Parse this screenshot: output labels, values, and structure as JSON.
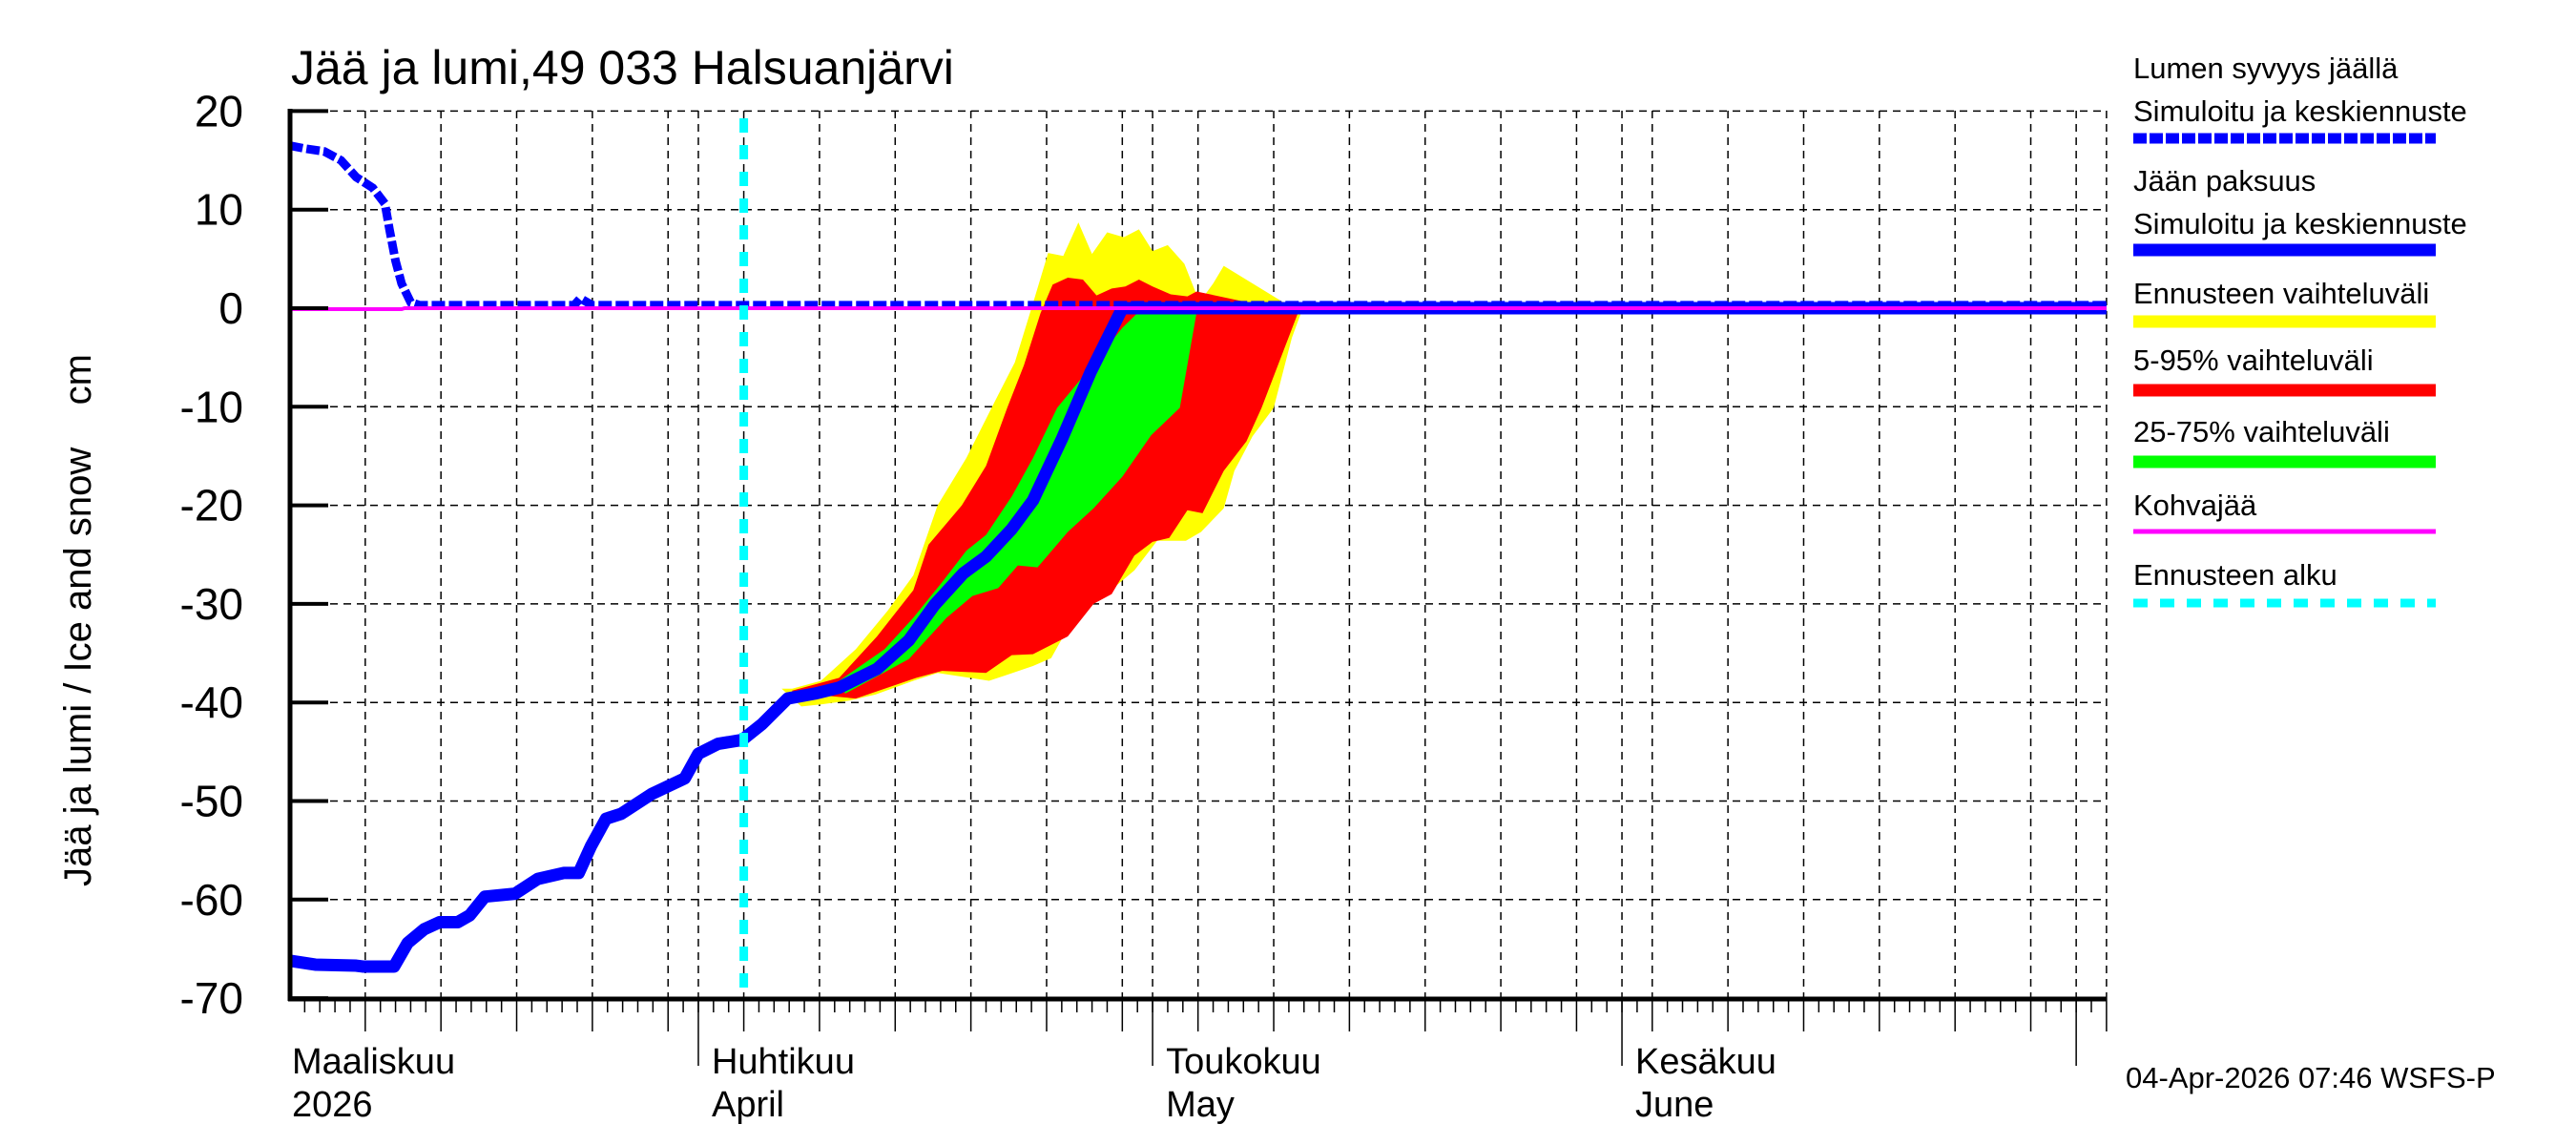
{
  "title": "Jää ja lumi,49 033 Halsuanjärvi",
  "timestamp": "04-Apr-2026 07:46 WSFS-P",
  "colors": {
    "snow": "#0000ff",
    "ice": "#0000ff",
    "range_full": "#ffff00",
    "range_5_95": "#ff0000",
    "range_25_75": "#00ff00",
    "slush_ice": "#ff00ff",
    "forecast_start": "#00ffff",
    "grid": "#000000"
  },
  "legend": [
    {
      "label1": "Lumen syvyys jäällä",
      "label2": "Simuloitu ja keskiennuste",
      "key": "snow",
      "style": "dashed-thick"
    },
    {
      "label1": "Jään paksuus",
      "label2": "Simuloitu ja keskiennuste",
      "key": "ice",
      "style": "solid-thick"
    },
    {
      "label1": "Ennusteen vaihteluväli",
      "label2": "",
      "key": "range_full",
      "style": "solid-thick"
    },
    {
      "label1": "5-95% vaihteluväli",
      "label2": "",
      "key": "range_5_95",
      "style": "solid-thick"
    },
    {
      "label1": "25-75% vaihteluväli",
      "label2": "",
      "key": "range_25_75",
      "style": "solid-thick"
    },
    {
      "label1": "Kohvajää",
      "label2": "",
      "key": "slush_ice",
      "style": "solid-thin"
    },
    {
      "label1": "Ennusteen alku",
      "label2": "",
      "key": "forecast_start",
      "style": "dotted-thick"
    }
  ],
  "chart_data": {
    "type": "area",
    "title": "Jää ja lumi,49 033 Halsuanjärvi",
    "xlabel": "",
    "ylabel": "Jää ja lumi / Ice and snow    cm",
    "ylim": [
      -70,
      20
    ],
    "yticks": [
      20,
      10,
      0,
      -10,
      -20,
      -30,
      -40,
      -50,
      -60,
      -70
    ],
    "x_unit": "days since 2026-03-01",
    "xlim": [
      4,
      124
    ],
    "grid": true,
    "grid_x_days": [
      9,
      14,
      19,
      24,
      29,
      34,
      39,
      44,
      49,
      54,
      59,
      64,
      69,
      74,
      79,
      84,
      89,
      94,
      99,
      104,
      109,
      114,
      119,
      124
    ],
    "month_ticks": [
      {
        "day": 4,
        "label1": "Maaliskuu",
        "label2": "2026",
        "label_only": true
      },
      {
        "day": 31,
        "label1": "Huhtikuu",
        "label2": "April"
      },
      {
        "day": 61,
        "label1": "Toukokuu",
        "label2": "May"
      },
      {
        "day": 92,
        "label1": "Kesäkuu",
        "label2": "June"
      },
      {
        "day": 122,
        "label1": "",
        "label2": ""
      }
    ],
    "forecast_start_day": 34,
    "legend_position": "right",
    "series": [
      {
        "name": "Lumen syvyys jäällä — Simuloitu ja keskiennuste",
        "key": "snow",
        "x": [
          4,
          5,
          6.3,
          7.4,
          8.4,
          9.5,
          10.3,
          10.6,
          11.0,
          11.4,
          12.0,
          12.6,
          20,
          22.8,
          23.2,
          24.0,
          58,
          124
        ],
        "values": [
          16.5,
          16.2,
          15.9,
          15.0,
          13.3,
          12.2,
          10.6,
          8.0,
          4.8,
          2.5,
          0.6,
          0.3,
          0.3,
          0.3,
          1.0,
          0.3,
          0.3,
          0.3
        ]
      },
      {
        "name": "Jään paksuus — Simuloitu ja keskiennuste",
        "key": "ice",
        "x": [
          4,
          5.7,
          8.4,
          8.9,
          10.9,
          11.8,
          12.9,
          13.9,
          15.1,
          15.9,
          16.9,
          18.9,
          20.4,
          22.1,
          23.1,
          23.9,
          24.9,
          25.9,
          27.9,
          30.1,
          31.0,
          32.3,
          33.9,
          35.2,
          36.9,
          38.7,
          40.3,
          42.8,
          44.9,
          46.6,
          48.5,
          50.0,
          51.7,
          53.1,
          55.0,
          56.9,
          59.0,
          124
        ],
        "values": [
          -66.2,
          -66.6,
          -66.7,
          -66.8,
          -66.8,
          -64.4,
          -63.0,
          -62.3,
          -62.3,
          -61.6,
          -59.7,
          -59.4,
          -57.9,
          -57.3,
          -57.3,
          -54.6,
          -51.8,
          -51.3,
          -49.3,
          -47.7,
          -45.2,
          -44.2,
          -43.8,
          -42.2,
          -39.6,
          -39.1,
          -38.5,
          -36.6,
          -33.7,
          -30.1,
          -26.9,
          -25.2,
          -22.4,
          -19.5,
          -13.3,
          -6.5,
          0.0,
          0.0
        ]
      },
      {
        "name": "Kohvajää",
        "key": "slush_ice",
        "x": [
          4,
          11.4,
          11.6,
          124
        ],
        "values": [
          -0.1,
          -0.1,
          0.0,
          0.0
        ]
      }
    ],
    "bands": [
      {
        "name": "Ennusteen vaihteluväli",
        "key": "range_full",
        "upper_x": [
          36.5,
          37.2,
          39.1,
          41.4,
          43.5,
          45.2,
          46.8,
          48.7,
          50.6,
          51.9,
          53.1,
          54.1,
          55.1,
          56.1,
          57.0,
          58.0,
          59.1,
          60.1,
          61.0,
          62.0,
          63.1,
          64.1,
          65.0,
          65.7
        ],
        "upper": [
          -38.6,
          -38.6,
          -37.8,
          -34.6,
          -30.7,
          -27.1,
          -20.0,
          -15.2,
          -9.4,
          -5.5,
          0.5,
          5.6,
          5.3,
          8.7,
          5.5,
          7.7,
          7.2,
          8.0,
          5.8,
          6.4,
          4.5,
          0.6,
          2.5,
          4.3
        ],
        "lower_x": [
          36.5,
          37.8,
          39.1,
          41.0,
          42.7,
          45.2,
          46.8,
          50.2,
          51.2,
          53.1,
          54.3,
          55.1,
          57.1,
          58.1,
          59.8,
          61.3,
          63.2,
          64.2,
          65.7,
          66.4,
          67.6,
          69.0,
          70.2,
          70.8
        ],
        "lower": [
          -38.6,
          -40.4,
          -40.2,
          -39.8,
          -39.2,
          -37.8,
          -37.0,
          -37.8,
          -37.3,
          -36.3,
          -35.5,
          -33.3,
          -30.0,
          -28.8,
          -26.6,
          -23.6,
          -23.6,
          -22.7,
          -20.3,
          -16.5,
          -13.0,
          -10.1,
          -3.0,
          -0.5
        ]
      },
      {
        "name": "5-95% vaihteluväli",
        "key": "range_5_95",
        "upper_x": [
          37.2,
          40.3,
          42.8,
          45.2,
          46.2,
          48.4,
          50.0,
          51.4,
          52.5,
          53.6,
          54.4,
          55.4,
          56.4,
          57.3,
          58.3,
          59.2,
          60.1,
          61.0,
          62.2,
          63.3,
          63.9
        ],
        "upper": [
          -38.8,
          -37.5,
          -33.3,
          -28.6,
          -24.0,
          -20.0,
          -16.0,
          -10.1,
          -5.8,
          -0.5,
          2.4,
          3.1,
          2.9,
          1.3,
          2.0,
          2.2,
          2.9,
          2.2,
          1.4,
          1.2,
          1.7
        ],
        "lower_x": [
          37.2,
          41.4,
          45.4,
          47.1,
          50.0,
          51.7,
          53.1,
          55.4,
          57.1,
          58.3,
          59.8,
          61.0,
          62.1,
          63.3,
          64.3,
          65.7,
          67.2,
          68.2,
          70.6
        ],
        "lower": [
          -39.0,
          -39.6,
          -37.5,
          -36.8,
          -37.0,
          -35.2,
          -35.1,
          -33.3,
          -30.0,
          -29.0,
          -25.1,
          -23.7,
          -23.3,
          -20.5,
          -20.8,
          -16.5,
          -13.5,
          -10.1,
          -0.5
        ]
      },
      {
        "name": "25-75% vaihteluväli",
        "key": "range_25_75",
        "upper_x": [
          40.3,
          43.3,
          45.2,
          47.1,
          48.7,
          50.0,
          51.7,
          53.1,
          54.7,
          56.9,
          59.0,
          60.0
        ],
        "upper": [
          -37.8,
          -34.6,
          -31.4,
          -27.8,
          -24.6,
          -23.0,
          -19.1,
          -15.2,
          -10.1,
          -6.0,
          -2.0,
          -0.5
        ],
        "lower_x": [
          40.7,
          44.9,
          47.4,
          49.1,
          50.8,
          52.1,
          53.4,
          55.4,
          57.1,
          59.0,
          60.9,
          62.8,
          63.9
        ],
        "lower": [
          -39.1,
          -35.6,
          -31.4,
          -29.2,
          -28.4,
          -26.1,
          -26.3,
          -22.7,
          -20.3,
          -17.1,
          -12.9,
          -10.1,
          -0.5
        ]
      }
    ]
  },
  "axes": {
    "ytick_labels": [
      "20",
      "10",
      "0",
      "-10",
      "-20",
      "-30",
      "-40",
      "-50",
      "-60",
      "-70"
    ],
    "ylabel": "Jää ja lumi / Ice and snow    cm"
  }
}
